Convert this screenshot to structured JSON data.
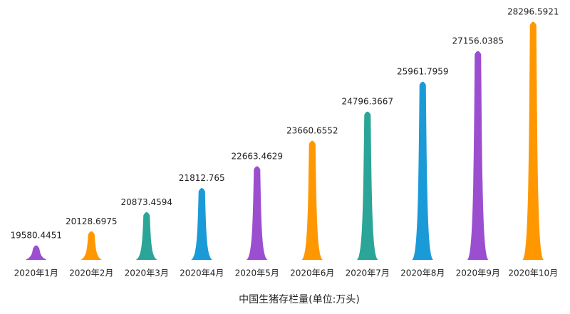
{
  "chart_data": {
    "type": "pictorial-bar",
    "x_label": "中国生猪存栏量(单位:万头)",
    "categories": [
      "2020年1月",
      "2020年2月",
      "2020年3月",
      "2020年4月",
      "2020年5月",
      "2020年6月",
      "2020年7月",
      "2020年8月",
      "2020年9月",
      "2020年10月"
    ],
    "values": [
      19580.4451,
      20128.6975,
      20873.4594,
      21812.765,
      22663.4629,
      23660.6552,
      24796.3667,
      25961.7959,
      27156.0385,
      28296.5921
    ],
    "colors": [
      "#9b4fd0",
      "#ff9800",
      "#2ba597",
      "#1a9bd7"
    ],
    "ylim": [
      19000,
      28300
    ]
  }
}
